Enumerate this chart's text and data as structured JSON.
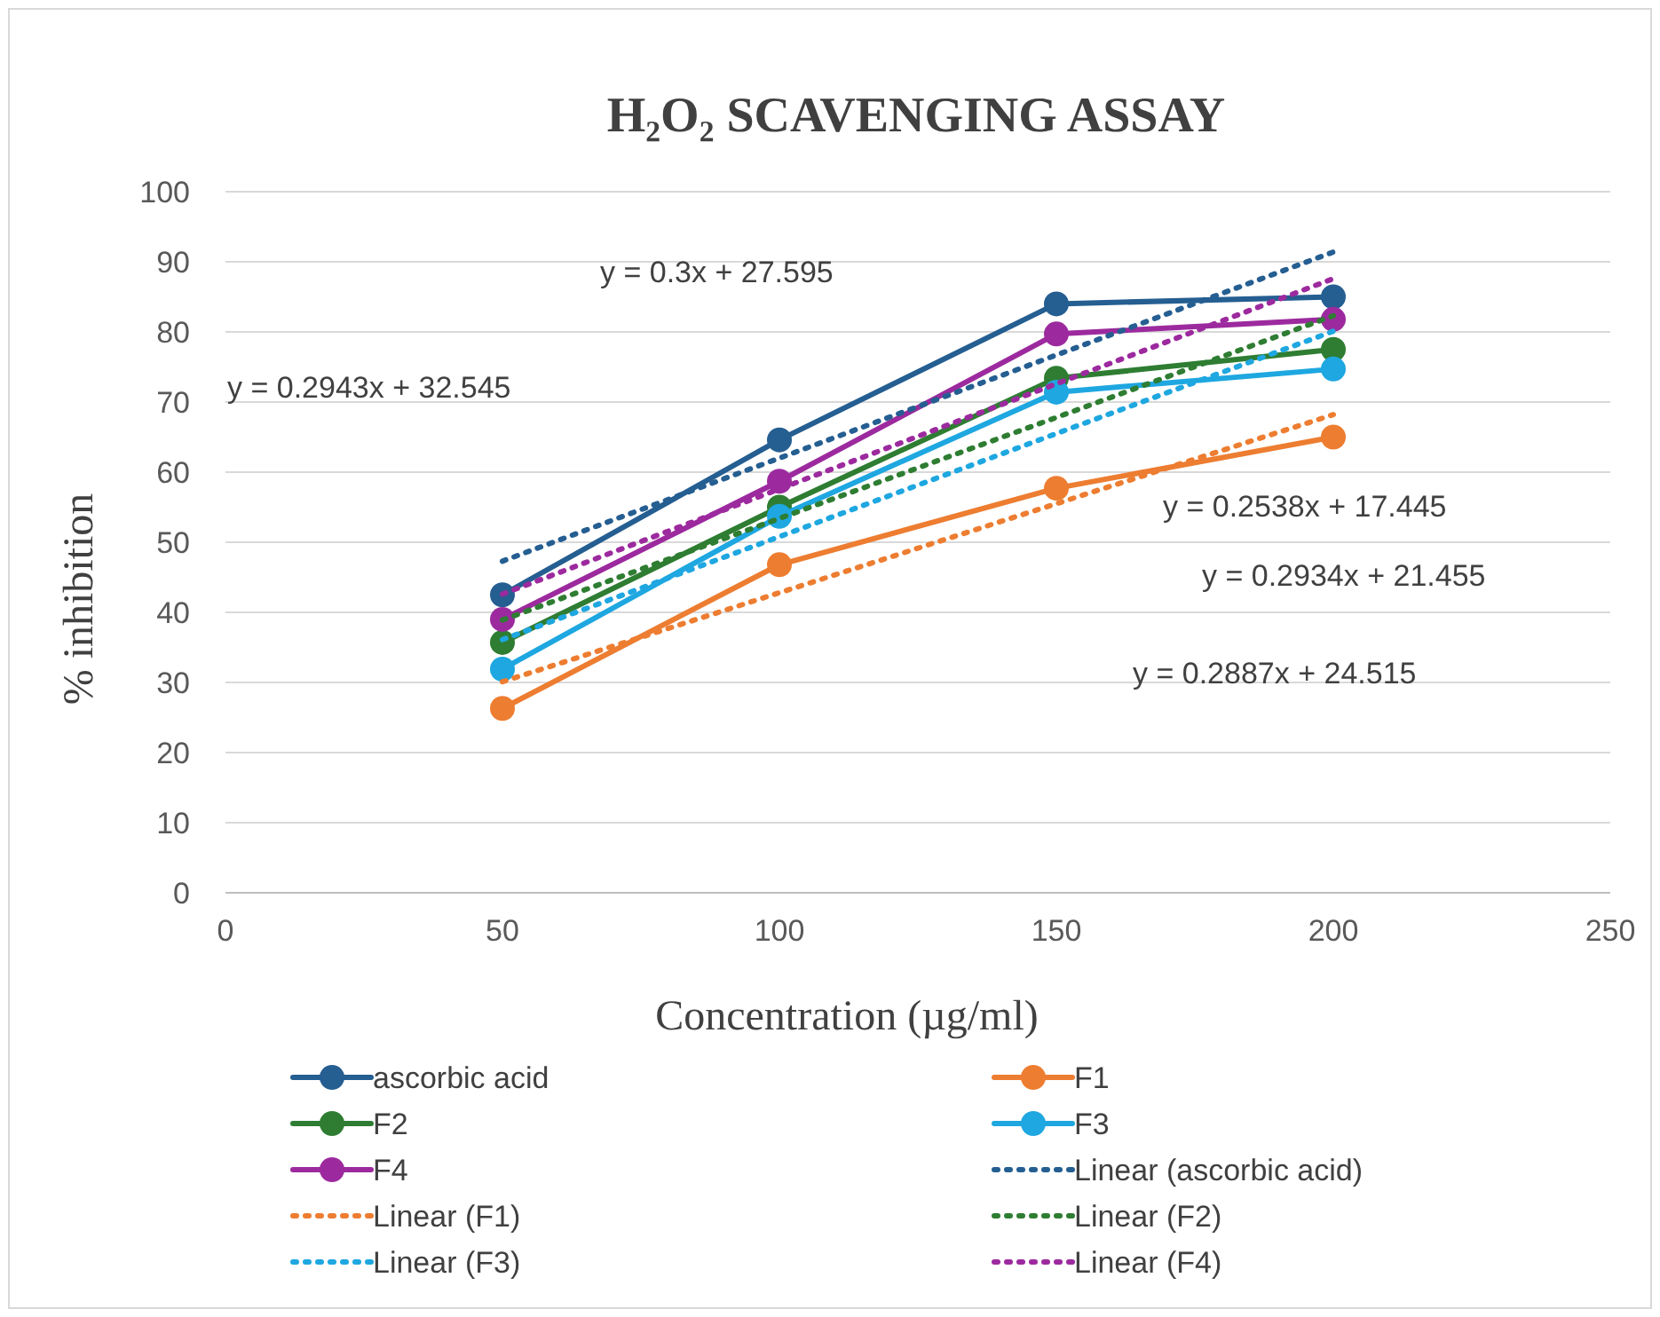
{
  "chart_data": {
    "type": "line",
    "title": "H₂O₂ SCAVENGING ASSAY",
    "xlabel": "Concentration (µg/ml)",
    "ylabel": "% inhibition",
    "x": [
      50,
      100,
      150,
      200
    ],
    "xlim": [
      0,
      250
    ],
    "xticks": [
      0,
      50,
      100,
      150,
      200,
      250
    ],
    "ylim": [
      0,
      100
    ],
    "yticks": [
      0,
      10,
      20,
      30,
      40,
      50,
      60,
      70,
      80,
      90,
      100
    ],
    "grid": "y",
    "legend": "bottom",
    "marker": "circle",
    "line_style": "solid",
    "series": [
      {
        "name": "ascorbic acid",
        "color": "#255e91",
        "values": [
          42.5,
          64.6,
          84,
          85
        ]
      },
      {
        "name": "F1",
        "color": "#ed7d31",
        "values": [
          26.3,
          46.8,
          57.7,
          65
        ]
      },
      {
        "name": "F2",
        "color": "#2e7d32",
        "values": [
          35.7,
          55,
          73.4,
          77.5
        ]
      },
      {
        "name": "F3",
        "color": "#1ea7e0",
        "values": [
          31.9,
          53.7,
          71.4,
          74.7
        ]
      },
      {
        "name": "F4",
        "color": "#9c2a9e",
        "values": [
          39,
          58.7,
          79.7,
          81.8
        ]
      },
      {
        "name": "Linear (ascorbic acid)",
        "color": "#255e91",
        "values": [
          47.3,
          62.0,
          76.7,
          91.4
        ],
        "marker": "none",
        "line_style": "dotted"
      },
      {
        "name": "Linear (F1)",
        "color": "#ed7d31",
        "values": [
          30.1,
          42.8,
          55.5,
          68.2
        ],
        "marker": "none",
        "line_style": "dotted"
      },
      {
        "name": "Linear (F2)",
        "color": "#2e7d32",
        "values": [
          38.9,
          53.4,
          67.8,
          82.3
        ],
        "marker": "none",
        "line_style": "dotted"
      },
      {
        "name": "Linear (F3)",
        "color": "#1ea7e0",
        "values": [
          36.1,
          50.8,
          65.5,
          80.1
        ],
        "marker": "none",
        "line_style": "dotted"
      },
      {
        "name": "Linear (F4)",
        "color": "#9c2a9e",
        "values": [
          42.6,
          57.6,
          72.6,
          87.6
        ],
        "marker": "none",
        "line_style": "dotted"
      }
    ],
    "annotations": [
      "y = 0.3x + 27.595",
      "y = 0.2943x + 32.545",
      "y = 0.2538x + 17.445",
      "y = 0.2934x + 21.455",
      "y = 0.2887x + 24.515"
    ]
  }
}
